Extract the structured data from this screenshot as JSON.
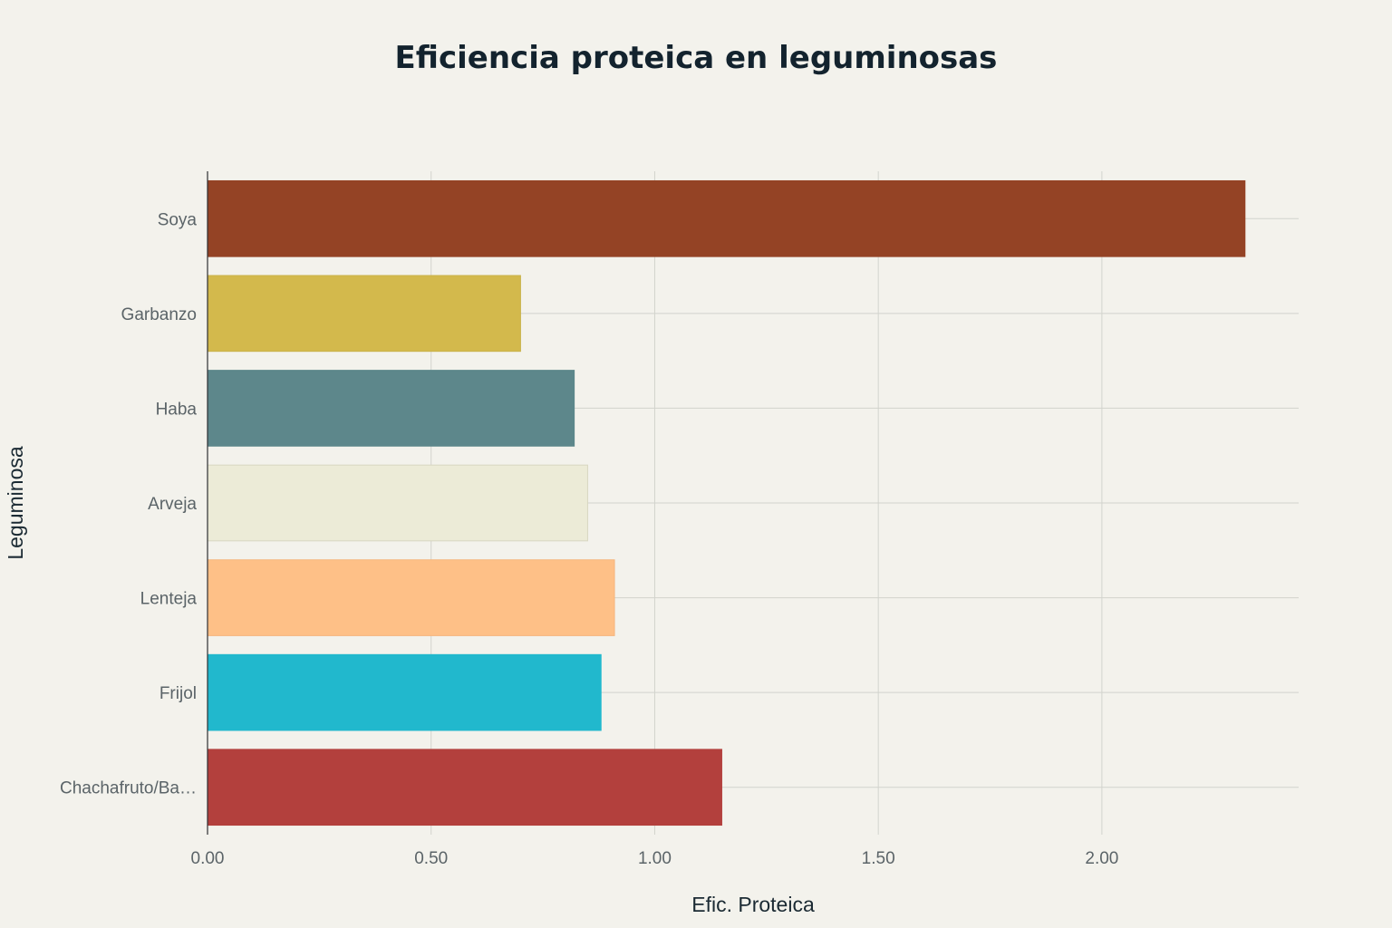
{
  "chart_data": {
    "type": "bar",
    "orientation": "horizontal",
    "title": "Eficiencia proteica en leguminosas",
    "xlabel": "Efic. Proteica",
    "ylabel": "Leguminosa",
    "categories": [
      "Soya",
      "Garbanzo",
      "Haba",
      "Arveja",
      "Lenteja",
      "Frijol",
      "Chachafruto/Ba…"
    ],
    "values": [
      2.32,
      0.7,
      0.82,
      0.85,
      0.91,
      0.88,
      1.15
    ],
    "colors": [
      "#944325",
      "#d3b94c",
      "#5d878b",
      "#ecebd7",
      "#fec087",
      "#21b8cd",
      "#b3403d"
    ],
    "bar_edge_colors": [
      "#944325",
      "#c9b24a",
      "#5d878b",
      "#d8d6c0",
      "#f5b57d",
      "#21b8cd",
      "#b3403d"
    ],
    "xlim": [
      0,
      2.44
    ],
    "xticks": [
      0,
      0.5,
      1.0,
      1.5,
      2.0
    ],
    "xtick_labels": [
      "0.00",
      "0.50",
      "1.00",
      "1.50",
      "2.00"
    ],
    "grid": true,
    "legend": "none"
  }
}
